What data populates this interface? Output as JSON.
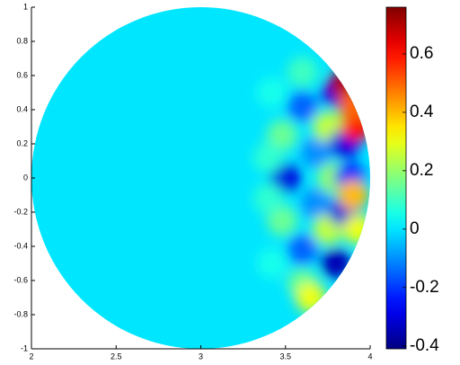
{
  "chart_data": {
    "type": "heatmap",
    "colormap": "jet",
    "background_value": 0,
    "x": [
      3.5,
      3.48,
      3.48,
      3.4,
      3.4,
      3.6,
      3.6,
      3.68,
      3.68,
      3.42,
      3.42,
      3.75,
      3.75,
      3.78,
      3.6,
      3.6,
      3.85,
      3.85,
      3.8,
      3.8,
      3.88,
      3.92,
      3.9,
      3.85,
      3.9,
      3.65,
      3.93
    ],
    "y": [
      0,
      0.25,
      -0.25,
      0.12,
      -0.12,
      0.42,
      -0.42,
      0.15,
      -0.15,
      0.5,
      -0.5,
      0.3,
      -0.3,
      0,
      0.62,
      -0.62,
      0.2,
      -0.2,
      0.5,
      -0.5,
      0,
      0.3,
      -0.1,
      0.55,
      0.42,
      -0.7,
      -0.3
    ],
    "values": [
      -0.3,
      0.15,
      0.15,
      0.08,
      0.08,
      -0.15,
      -0.15,
      -0.1,
      -0.1,
      0.05,
      0.05,
      0.25,
      0.25,
      0.2,
      0.1,
      0.15,
      -0.3,
      -0.3,
      -0.3,
      -0.35,
      -0.25,
      0.6,
      0.4,
      0.7,
      0.5,
      0.3,
      0.3
    ],
    "xlim": [
      2,
      4
    ],
    "ylim": [
      -1,
      1
    ],
    "xticks": [
      2,
      2.5,
      3,
      3.5,
      4
    ],
    "yticks": [
      -1,
      -0.8,
      -0.6,
      -0.4,
      -0.2,
      0,
      0.2,
      0.4,
      0.6,
      0.8,
      1
    ],
    "clim": [
      -0.41,
      0.76
    ],
    "cticks": [
      -0.4,
      -0.2,
      0,
      0.2,
      0.4,
      0.6
    ]
  }
}
